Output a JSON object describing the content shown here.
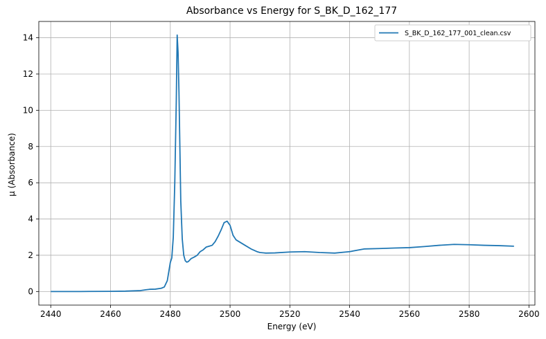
{
  "chart_data": {
    "type": "line",
    "title": "Absorbance vs Energy for S_BK_D_162_177",
    "xlabel": "Energy (eV)",
    "ylabel": "µ (Absorbance)",
    "xlim": [
      2436,
      2602
    ],
    "ylim": [
      -0.75,
      14.9
    ],
    "xticks": [
      2440,
      2460,
      2480,
      2500,
      2520,
      2540,
      2560,
      2580,
      2600
    ],
    "yticks": [
      0,
      2,
      4,
      6,
      8,
      10,
      12,
      14
    ],
    "grid": true,
    "legend_position": "top-right",
    "line_color": "#1f77b4",
    "series": [
      {
        "name": "S_BK_D_162_177_001_clean.csv",
        "x": [
          2440,
          2450,
          2460,
          2465,
          2470,
          2472,
          2473,
          2475,
          2477,
          2478,
          2479,
          2480,
          2480.5,
          2481,
          2481.5,
          2482,
          2482.3,
          2482.6,
          2482.9,
          2483.2,
          2483.5,
          2484,
          2484.5,
          2485,
          2485.5,
          2486,
          2487,
          2488,
          2489,
          2490,
          2491,
          2492,
          2493,
          2494,
          2495,
          2496,
          2497,
          2498,
          2499,
          2500,
          2501,
          2502,
          2503,
          2505,
          2507,
          2509,
          2510,
          2512,
          2515,
          2520,
          2525,
          2530,
          2535,
          2540,
          2545,
          2550,
          2555,
          2560,
          2565,
          2570,
          2575,
          2580,
          2585,
          2590,
          2595
        ],
        "values": [
          0.0,
          0.0,
          0.01,
          0.02,
          0.05,
          0.1,
          0.12,
          0.13,
          0.18,
          0.25,
          0.6,
          1.6,
          1.85,
          3.0,
          6.0,
          10.5,
          14.15,
          13.2,
          11.0,
          8.0,
          5.0,
          2.9,
          2.0,
          1.7,
          1.62,
          1.65,
          1.82,
          1.9,
          2.0,
          2.2,
          2.3,
          2.45,
          2.5,
          2.55,
          2.75,
          3.05,
          3.4,
          3.8,
          3.88,
          3.65,
          3.1,
          2.85,
          2.75,
          2.55,
          2.35,
          2.2,
          2.15,
          2.12,
          2.13,
          2.18,
          2.2,
          2.15,
          2.12,
          2.2,
          2.35,
          2.37,
          2.4,
          2.42,
          2.48,
          2.55,
          2.6,
          2.58,
          2.55,
          2.53,
          2.5
        ]
      }
    ]
  }
}
